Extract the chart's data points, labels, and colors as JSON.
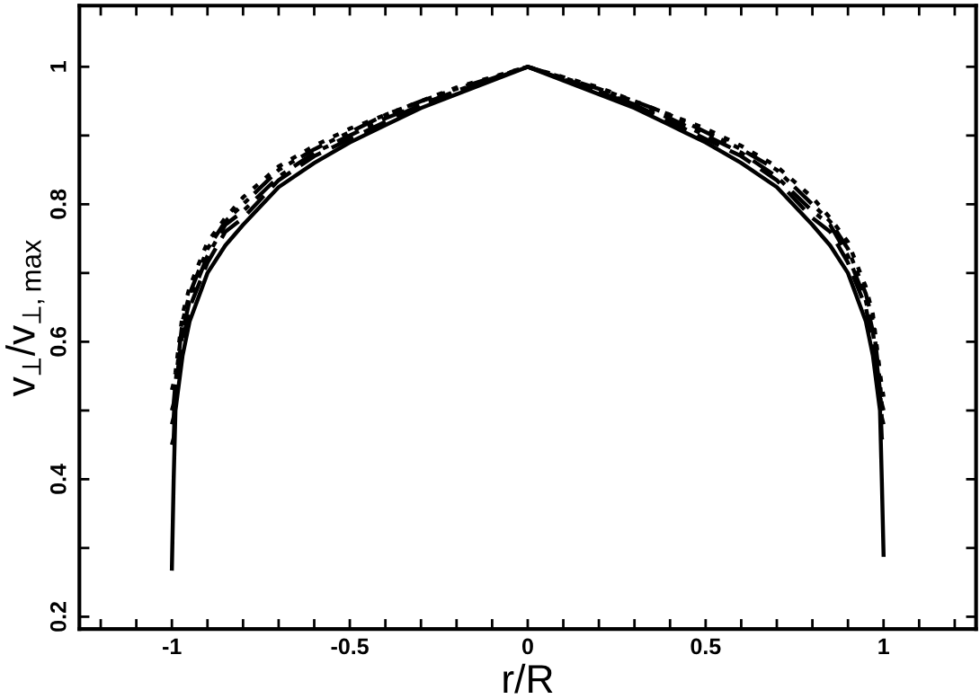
{
  "chart_data": {
    "type": "line",
    "xlabel": "r/R",
    "ylabel": "v$_{⊥}$/v$_{⊥,max}$",
    "x": [
      -1,
      -0.995,
      -0.99,
      -0.97,
      -0.95,
      -0.9,
      -0.85,
      -0.8,
      -0.7,
      -0.6,
      -0.5,
      -0.4,
      -0.3,
      -0.2,
      -0.1,
      0,
      0.1,
      0.2,
      0.3,
      0.4,
      0.5,
      0.6,
      0.7,
      0.8,
      0.85,
      0.9,
      0.95,
      0.97,
      0.99,
      0.995,
      1
    ],
    "series": [
      {
        "color": "#000000",
        "line_style": "solid",
        "values": [
          0.27,
          0.4,
          0.5,
          0.58,
          0.63,
          0.7,
          0.74,
          0.77,
          0.825,
          0.86,
          0.89,
          0.915,
          0.94,
          0.96,
          0.98,
          1,
          0.98,
          0.96,
          0.94,
          0.915,
          0.89,
          0.86,
          0.825,
          0.77,
          0.74,
          0.7,
          0.63,
          0.58,
          0.5,
          0.4,
          0.29
        ]
      },
      {
        "color": "#000000",
        "line_style": "dashed",
        "values": [
          0.45,
          0.46,
          0.52,
          0.6,
          0.65,
          0.715,
          0.76,
          0.78,
          0.835,
          0.87,
          0.895,
          0.92,
          0.945,
          0.963,
          0.982,
          1,
          0.982,
          0.963,
          0.945,
          0.92,
          0.895,
          0.87,
          0.835,
          0.78,
          0.76,
          0.715,
          0.65,
          0.6,
          0.52,
          0.46,
          0.45
        ]
      },
      {
        "color": "#000000",
        "line_style": "dashdot",
        "values": [
          0.48,
          0.49,
          0.53,
          0.615,
          0.66,
          0.725,
          0.77,
          0.79,
          0.84,
          0.875,
          0.9,
          0.925,
          0.945,
          0.965,
          0.983,
          1,
          0.983,
          0.965,
          0.945,
          0.925,
          0.9,
          0.875,
          0.84,
          0.79,
          0.77,
          0.725,
          0.66,
          0.615,
          0.53,
          0.49,
          0.48
        ]
      },
      {
        "color": "#000000",
        "line_style": "dashdotdot",
        "values": [
          0.5,
          0.51,
          0.54,
          0.63,
          0.67,
          0.735,
          0.775,
          0.8,
          0.85,
          0.88,
          0.905,
          0.93,
          0.95,
          0.968,
          0.984,
          1,
          0.984,
          0.968,
          0.95,
          0.93,
          0.905,
          0.88,
          0.85,
          0.8,
          0.775,
          0.735,
          0.67,
          0.63,
          0.54,
          0.51,
          0.5
        ]
      },
      {
        "color": "#000000",
        "line_style": "dotted",
        "values": [
          0.53,
          0.54,
          0.555,
          0.64,
          0.68,
          0.745,
          0.78,
          0.81,
          0.855,
          0.885,
          0.91,
          0.93,
          0.95,
          0.97,
          0.985,
          1,
          0.985,
          0.97,
          0.95,
          0.93,
          0.91,
          0.885,
          0.855,
          0.81,
          0.78,
          0.745,
          0.68,
          0.64,
          0.555,
          0.535,
          0.52
        ]
      }
    ],
    "xlim": [
      -1.26,
      1.26
    ],
    "ylim": [
      0.182,
      1.089
    ],
    "xticks": [
      {
        "value": -1.2,
        "label": null
      },
      {
        "value": -1.1,
        "label": null
      },
      -1,
      {
        "value": -0.9,
        "label": null
      },
      {
        "value": -0.8,
        "label": null
      },
      {
        "value": -0.7,
        "label": null
      },
      {
        "value": -0.6,
        "label": null
      },
      -0.5,
      {
        "value": -0.4,
        "label": null
      },
      {
        "value": -0.3,
        "label": null
      },
      {
        "value": -0.2,
        "label": null
      },
      {
        "value": -0.1,
        "label": null
      },
      0,
      {
        "value": 0.1,
        "label": null
      },
      {
        "value": 0.2,
        "label": null
      },
      {
        "value": 0.3,
        "label": null
      },
      {
        "value": 0.4,
        "label": null
      },
      0.5,
      {
        "value": 0.6,
        "label": null
      },
      {
        "value": 0.7,
        "label": null
      },
      {
        "value": 0.8,
        "label": null
      },
      {
        "value": 0.9,
        "label": null
      },
      1,
      {
        "value": 1.1,
        "label": null
      },
      {
        "value": 1.2,
        "label": null
      }
    ],
    "yticks": [
      0.2,
      {
        "value": 0.3,
        "label": null
      },
      0.4,
      {
        "value": 0.5,
        "label": null
      },
      0.6,
      {
        "value": 0.7,
        "label": null
      },
      0.8,
      {
        "value": 0.9,
        "label": null
      },
      1
    ],
    "grid": false,
    "legend": false
  }
}
